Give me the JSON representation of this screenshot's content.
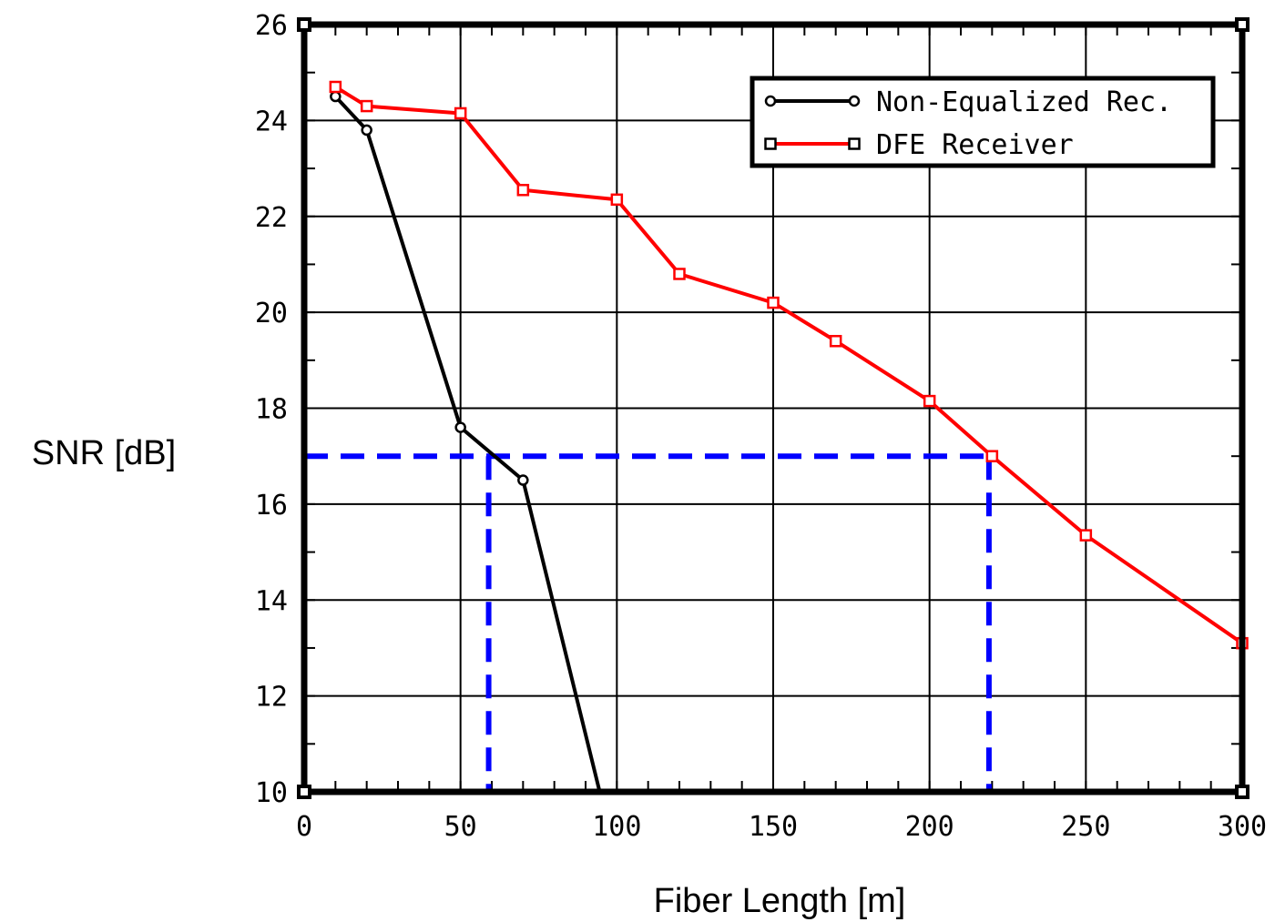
{
  "chart_data": {
    "type": "line",
    "xlabel": "Fiber Length [m]",
    "ylabel": "SNR [dB]",
    "xlim": [
      0,
      300
    ],
    "ylim": [
      10,
      26
    ],
    "xticks": [
      0,
      50,
      100,
      150,
      200,
      250,
      300
    ],
    "yticks": [
      10,
      12,
      14,
      16,
      18,
      20,
      22,
      24,
      26
    ],
    "xtick_labels": [
      "0",
      "50",
      "100",
      "150",
      "200",
      "250",
      "300"
    ],
    "ytick_labels": [
      "10",
      "12",
      "14",
      "16",
      "18",
      "20",
      "22",
      "24",
      "26"
    ],
    "grid": true,
    "legend_position": "top-right",
    "series": [
      {
        "name": "Non-Equalized Rec.",
        "color": "#000000",
        "marker": "circle",
        "x": [
          10,
          20,
          50,
          70,
          94.5
        ],
        "y": [
          24.5,
          23.8,
          17.6,
          16.5,
          10
        ]
      },
      {
        "name": "DFE Receiver",
        "color": "#ff0000",
        "marker": "square",
        "x": [
          10,
          20,
          50,
          70,
          100,
          120,
          150,
          170,
          200,
          220,
          250,
          300
        ],
        "y": [
          24.7,
          24.3,
          24.15,
          22.55,
          22.35,
          20.8,
          20.2,
          19.4,
          18.15,
          17.0,
          15.35,
          13.1
        ]
      }
    ],
    "reference_lines": {
      "color": "#0000ff",
      "snr_level": 17,
      "fiber_lengths": [
        59,
        219
      ]
    }
  }
}
